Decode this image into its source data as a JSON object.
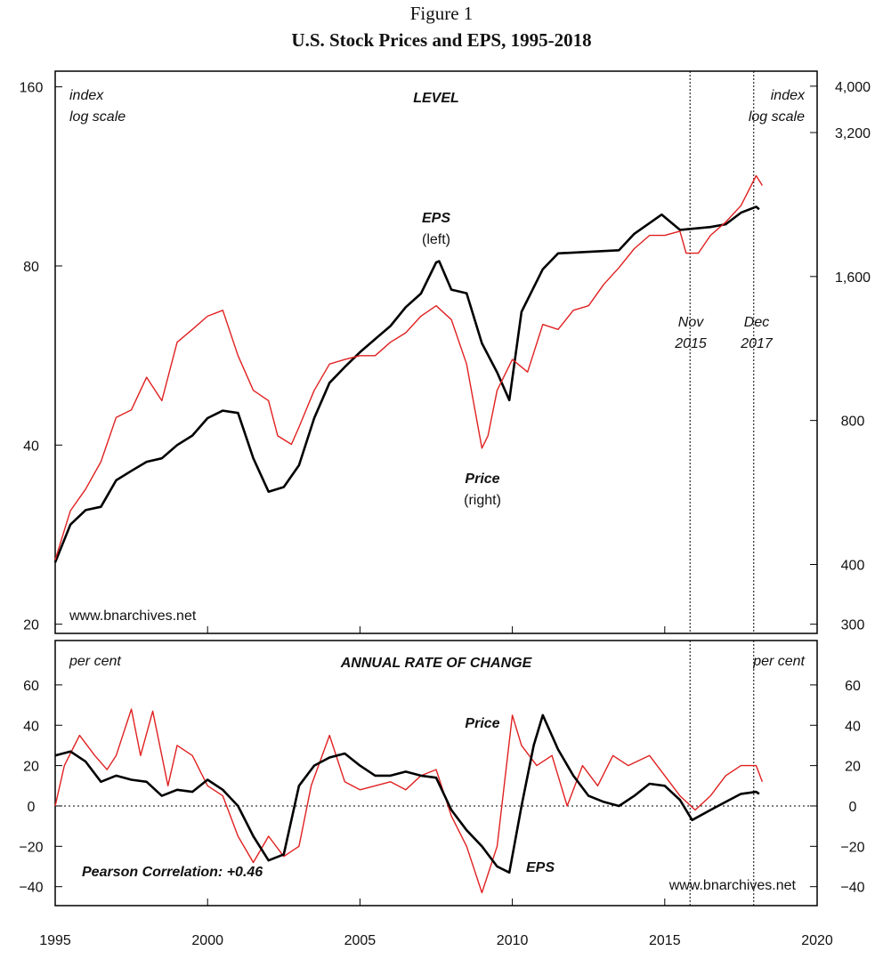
{
  "figure": {
    "label": "Figure 1",
    "title": "U.S. Stock Prices and EPS, 1995-2018"
  },
  "chart_data": [
    {
      "type": "line",
      "title": "LEVEL",
      "y_label": [
        "index",
        "log scale"
      ],
      "y2_label": [
        "index",
        "log scale"
      ],
      "source": "www.bnarchives.net",
      "log_scale": true,
      "xlim": [
        1995,
        2020
      ],
      "xticks": [
        1995,
        2000,
        2005,
        2010,
        2015,
        2020
      ],
      "ylim": [
        19.3,
        170
      ],
      "yticks": [
        20,
        40,
        80,
        160
      ],
      "y2lim": [
        287,
        4300
      ],
      "y2ticks": [
        {
          "value": 4000,
          "label": "4,000"
        },
        {
          "value": 3200,
          "label": "3,200"
        },
        {
          "value": 1600,
          "label": "1,600"
        },
        800,
        400,
        300
      ],
      "markers": [
        {
          "x": 2015.83,
          "label": [
            "Nov",
            "2015"
          ]
        },
        {
          "x": 2017.92,
          "label": [
            "Dec",
            "2017"
          ]
        }
      ],
      "series": [
        {
          "name": "EPS",
          "axis_note": "(left)",
          "color": "#000000",
          "axis": "y",
          "x": [
            1995.0,
            1995.5,
            1996.0,
            1996.5,
            1997.0,
            1997.5,
            1998.0,
            1998.5,
            1999.0,
            1999.5,
            2000.0,
            2000.5,
            2001.0,
            2001.5,
            2002.0,
            2002.5,
            2003.0,
            2003.5,
            2004.0,
            2004.5,
            2005.0,
            2005.5,
            2006.0,
            2006.5,
            2007.0,
            2007.5,
            2007.6,
            2008.0,
            2008.5,
            2009.0,
            2009.5,
            2009.9,
            2010.3,
            2011.0,
            2011.5,
            2012.5,
            2013.5,
            2014.0,
            2014.9,
            2015.5,
            2016.5,
            2017.0,
            2017.5,
            2018.0,
            2018.1
          ],
          "values": [
            25.4,
            29.4,
            31.1,
            31.5,
            34.9,
            36.2,
            37.5,
            38,
            40,
            41.5,
            44.4,
            45.7,
            45.3,
            38,
            33.4,
            34,
            37,
            44.4,
            50.9,
            54.1,
            57.3,
            60.3,
            63.4,
            68.2,
            71.9,
            81.1,
            81.5,
            73,
            72,
            59.3,
            53,
            47.6,
            67,
            79,
            84,
            84.5,
            85,
            90.6,
            97.6,
            92,
            93,
            94,
            98.3,
            100.6,
            99.6
          ]
        },
        {
          "name": "Price",
          "axis_note": "(right)",
          "color": "#e02020",
          "axis": "y2",
          "x": [
            1995.0,
            1995.5,
            1996.0,
            1996.5,
            1997.0,
            1997.5,
            1998.0,
            1998.5,
            1999.0,
            1999.5,
            2000.0,
            2000.5,
            2001.0,
            2001.5,
            2002.0,
            2002.3,
            2002.75,
            2003.0,
            2003.5,
            2004.0,
            2004.5,
            2005.0,
            2005.5,
            2006.0,
            2006.5,
            2007.0,
            2007.5,
            2008.0,
            2008.5,
            2009.0,
            2009.2,
            2009.5,
            2010.0,
            2010.5,
            2011.0,
            2011.5,
            2012.0,
            2012.5,
            2013.0,
            2013.5,
            2014.0,
            2014.5,
            2015.0,
            2015.5,
            2015.7,
            2016.1,
            2016.5,
            2017.0,
            2017.5,
            2018.0,
            2018.2
          ],
          "values": [
            409,
            518,
            575,
            656,
            812,
            842,
            985,
            880,
            1166,
            1240,
            1322,
            1360,
            1093,
            925,
            880,
            743,
            713,
            775,
            925,
            1050,
            1073,
            1093,
            1093,
            1166,
            1220,
            1322,
            1390,
            1300,
            1050,
            700,
            743,
            925,
            1073,
            1010,
            1270,
            1240,
            1360,
            1390,
            1540,
            1670,
            1830,
            1950,
            1950,
            1990,
            1790,
            1790,
            1950,
            2080,
            2250,
            2600,
            2480
          ]
        }
      ]
    },
    {
      "type": "line",
      "title": "ANNUAL RATE OF CHANGE",
      "y_label": [
        "per cent"
      ],
      "y2_label": [
        "per cent"
      ],
      "source": "www.bnarchives.net",
      "annotation": "Pearson Correlation:  +0.46",
      "zero_line": true,
      "xlim": [
        1995,
        2020
      ],
      "xticks": [
        1995,
        2000,
        2005,
        2010,
        2015,
        2020
      ],
      "ylim": [
        -49.4,
        82
      ],
      "yticks": [
        60,
        40,
        20,
        0,
        {
          "value": -20,
          "label": "−20"
        },
        {
          "value": -40,
          "label": "−40"
        }
      ],
      "markers": [
        {
          "x": 2015.83
        },
        {
          "x": 2017.92
        }
      ],
      "series": [
        {
          "name": "Price",
          "color": "#e02020",
          "x": [
            1995.0,
            1995.3,
            1995.8,
            1996.3,
            1996.7,
            1997.0,
            1997.5,
            1997.8,
            1998.2,
            1998.7,
            1999.0,
            1999.5,
            2000.0,
            2000.5,
            2001.0,
            2001.5,
            2002.0,
            2002.5,
            2003.0,
            2003.4,
            2004.0,
            2004.5,
            2005.0,
            2005.5,
            2006.0,
            2006.5,
            2007.0,
            2007.5,
            2008.0,
            2008.5,
            2009.0,
            2009.5,
            2010.0,
            2010.3,
            2010.8,
            2011.3,
            2011.8,
            2012.3,
            2012.8,
            2013.3,
            2013.8,
            2014.5,
            2015.0,
            2015.5,
            2016.0,
            2016.5,
            2017.0,
            2017.5,
            2018.0,
            2018.2
          ],
          "values": [
            0,
            20,
            35,
            25,
            18,
            25,
            48,
            25,
            47,
            10,
            30,
            25,
            10,
            5,
            -15,
            -28,
            -15,
            -25,
            -20,
            10,
            35,
            12,
            8,
            10,
            12,
            8,
            15,
            18,
            -5,
            -20,
            -43,
            -20,
            45,
            30,
            20,
            25,
            0,
            20,
            10,
            25,
            20,
            25,
            15,
            5,
            -2,
            5,
            15,
            20,
            20,
            12
          ]
        },
        {
          "name": "EPS",
          "color": "#000000",
          "x": [
            1995.0,
            1995.5,
            1996.0,
            1996.5,
            1997.0,
            1997.5,
            1998.0,
            1998.5,
            1999.0,
            1999.5,
            2000.0,
            2000.5,
            2001.0,
            2001.5,
            2002.0,
            2002.5,
            2003.0,
            2003.5,
            2004.0,
            2004.5,
            2005.0,
            2005.5,
            2006.0,
            2006.5,
            2007.0,
            2007.5,
            2008.0,
            2008.5,
            2009.0,
            2009.5,
            2009.9,
            2010.3,
            2010.7,
            2011.0,
            2011.5,
            2012.0,
            2012.5,
            2013.0,
            2013.5,
            2014.0,
            2014.5,
            2015.0,
            2015.5,
            2015.9,
            2016.5,
            2017.0,
            2017.5,
            2018.0,
            2018.1
          ],
          "values": [
            25,
            27,
            22,
            12,
            15,
            13,
            12,
            5,
            8,
            7,
            13,
            8,
            0,
            -15,
            -27,
            -24,
            10,
            20,
            24,
            26,
            20,
            15,
            15,
            17,
            15,
            14,
            -2,
            -12,
            -20,
            -30,
            -33,
            0,
            30,
            45,
            28,
            15,
            5,
            2,
            0,
            5,
            11,
            10,
            3,
            -7,
            -2,
            2,
            6,
            7,
            6
          ]
        }
      ]
    }
  ]
}
